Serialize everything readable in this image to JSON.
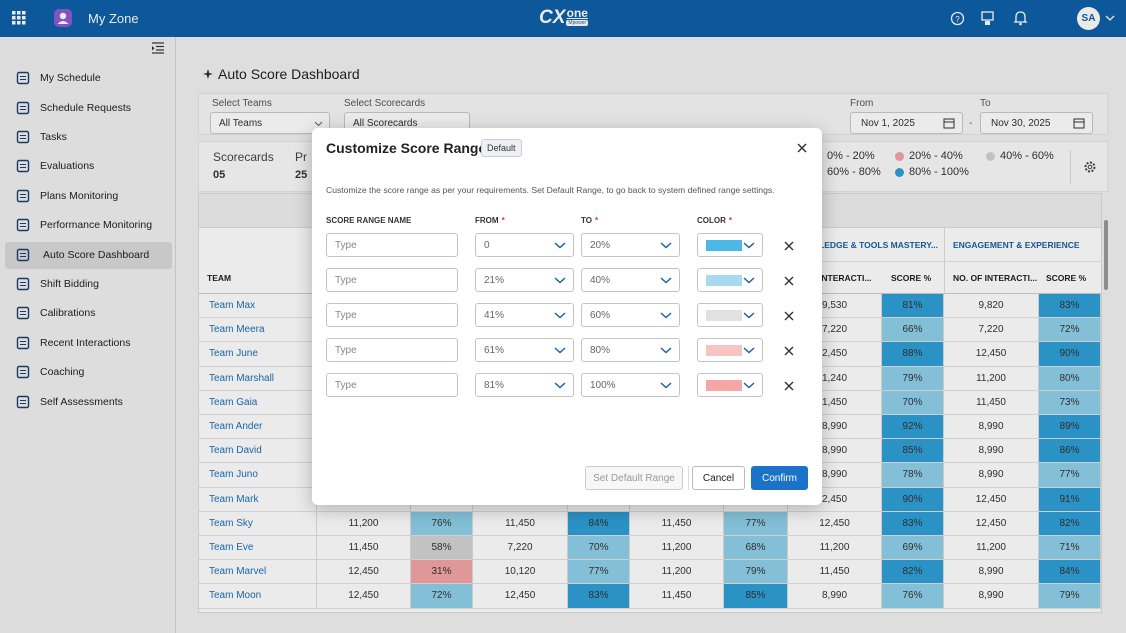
{
  "top_bar": {
    "app_name": "My Zone",
    "logo_main": "CX",
    "logo_one": "one",
    "logo_sub": "Mpower",
    "user_initials": "SA"
  },
  "sidebar": {
    "items": [
      "My Schedule",
      "Schedule Requests",
      "Tasks",
      "Evaluations",
      "Plans Monitoring",
      "Performance Monitoring",
      "Auto Score Dashboard",
      "Shift Bidding",
      "Calibrations",
      "Recent Interactions",
      "Coaching",
      "Self Assessments"
    ],
    "active": 6
  },
  "page": {
    "title": "Auto Score Dashboard"
  },
  "filters": {
    "teams_label": "Select Teams",
    "teams_value": "All Teams",
    "scorecards_label": "Select Scorecards",
    "scorecards_value": "All Scorecards",
    "from_label": "From",
    "from_value": "Nov 1, 2025",
    "separator": "-",
    "to_label": "To",
    "to_value": "Nov 30, 2025"
  },
  "stats": {
    "items": [
      {
        "label": "Scorecards",
        "value": "05"
      },
      {
        "label": "Pr",
        "value": "25"
      }
    ],
    "legend": [
      {
        "label": "0% - 20%",
        "color": "#e8684f"
      },
      {
        "label": "20% - 40%",
        "color": "#f2a4a4"
      },
      {
        "label": "40% - 60%",
        "color": "#d3d3d3"
      },
      {
        "label": "60% - 80%",
        "color": "#8fd0ea"
      },
      {
        "label": "80% - 100%",
        "color": "#2f9fd6"
      }
    ]
  },
  "table": {
    "group_headers": [
      "LEDGE & TOOLS MASTERY...",
      "ENGAGEMENT & EXPERIENCE"
    ],
    "team_header": "TEAM",
    "sub_headers": [
      "INTERACTI...",
      "SCORE %",
      "NO. OF INTERACTI...",
      "SCORE %"
    ],
    "rows": [
      {
        "team": "Team Max",
        "cells": [
          "9,530",
          "81%",
          "9,820",
          "83%"
        ]
      },
      {
        "team": "Team Meera",
        "cells": [
          "7,220",
          "66%",
          "7,220",
          "72%"
        ]
      },
      {
        "team": "Team June",
        "cells": [
          "2,450",
          "88%",
          "12,450",
          "90%"
        ]
      },
      {
        "team": "Team Marshall",
        "cells": [
          "1,240",
          "79%",
          "11,200",
          "80%"
        ]
      },
      {
        "team": "Team Gaia",
        "cells": [
          "1,450",
          "70%",
          "11,450",
          "73%"
        ]
      },
      {
        "team": "Team Ander",
        "cells": [
          "8,990",
          "92%",
          "8,990",
          "89%"
        ]
      },
      {
        "team": "Team David",
        "cells": [
          "8,990",
          "85%",
          "8,990",
          "86%"
        ]
      },
      {
        "team": "Team Juno",
        "cells": [
          "8,990",
          "78%",
          "8,990",
          "77%"
        ]
      },
      {
        "team": "Team Mark",
        "cells": [
          "2,450",
          "90%",
          "12,450",
          "91%"
        ]
      },
      {
        "team": "Team Sky",
        "cells": [
          "11,200",
          "76%",
          "11,450",
          "84%",
          "11,450",
          "77%",
          "12,450",
          "83%",
          "12,450",
          "82%"
        ]
      },
      {
        "team": "Team Eve",
        "cells": [
          "11,450",
          "58%",
          "7,220",
          "70%",
          "11,200",
          "68%",
          "11,200",
          "69%",
          "11,200",
          "71%"
        ]
      },
      {
        "team": "Team Marvel",
        "cells": [
          "12,450",
          "31%",
          "10,120",
          "77%",
          "11,200",
          "79%",
          "11,450",
          "82%",
          "8,990",
          "84%"
        ]
      },
      {
        "team": "Team Moon",
        "cells": [
          "12,450",
          "72%",
          "12,450",
          "83%",
          "11,450",
          "85%",
          "8,990",
          "76%",
          "8,990",
          "79%"
        ]
      }
    ]
  },
  "modal": {
    "title": "Customize Score Range",
    "badge": "Default",
    "description": "Customize the score range as per your requirements. Set Default Range, to go back to system defined range settings.",
    "columns": [
      {
        "label": "SCORE RANGE NAME"
      },
      {
        "label": "FROM",
        "required": "*"
      },
      {
        "label": "TO",
        "required": "*"
      },
      {
        "label": "COLOR",
        "required": "*"
      }
    ],
    "placeholder": "Type",
    "ranges": [
      {
        "from": "0",
        "to": "20%",
        "color": "#4cb8e8"
      },
      {
        "from": "21%",
        "to": "40%",
        "color": "#a9d9f1"
      },
      {
        "from": "41%",
        "to": "60%",
        "color": "#e1e1e1"
      },
      {
        "from": "61%",
        "to": "80%",
        "color": "#f8c3c3"
      },
      {
        "from": "81%",
        "to": "100%",
        "color": "#f7a6a6"
      }
    ],
    "buttons": {
      "default": "Set Default Range",
      "cancel": "Cancel",
      "confirm": "Confirm"
    }
  }
}
